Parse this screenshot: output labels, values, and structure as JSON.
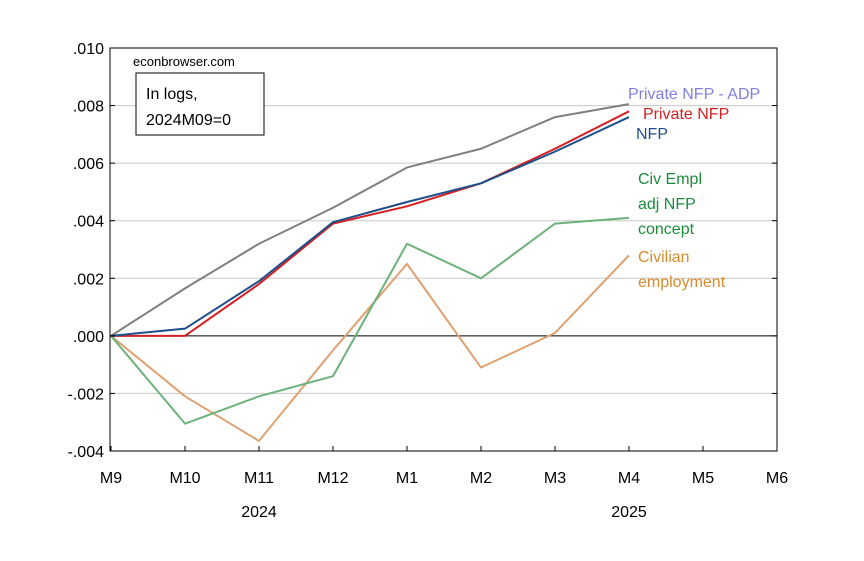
{
  "chart_data": {
    "type": "line",
    "source_note": "econbrowser.com",
    "annotation_lines": [
      "In logs,",
      "2024M09=0"
    ],
    "x": [
      "M9",
      "M10",
      "M11",
      "M12",
      "M1",
      "M2",
      "M3",
      "M4",
      "M5",
      "M6"
    ],
    "year_labels": [
      {
        "text": "2024",
        "at": "M11"
      },
      {
        "text": "2025",
        "at": "M4"
      }
    ],
    "ylim": [
      -0.004,
      0.01
    ],
    "yticks": [
      0.01,
      0.008,
      0.006,
      0.004,
      0.002,
      0.0,
      -0.002,
      -0.004
    ],
    "ytick_labels": [
      ".010",
      ".008",
      ".006",
      ".004",
      ".002",
      ".000",
      "-.002",
      "-.004"
    ],
    "grid": true,
    "zero_line": true,
    "series": [
      {
        "label_lines": [
          "Private NFP - ADP"
        ],
        "color": "#8080e0",
        "line_color": "#808080",
        "values": [
          0.0,
          0.00165,
          0.0032,
          0.00445,
          0.00585,
          0.0065,
          0.0076,
          0.00805,
          null,
          null
        ]
      },
      {
        "label_lines": [
          "Private NFP"
        ],
        "color": "#d42020",
        "values": [
          0.0,
          0.0,
          0.0018,
          0.0039,
          0.0045,
          0.0053,
          0.0065,
          0.0078,
          null,
          null
        ]
      },
      {
        "label_lines": [
          "NFP"
        ],
        "color": "#1f4e8c",
        "values": [
          0.0,
          0.00025,
          0.0019,
          0.00395,
          0.00465,
          0.0053,
          0.0064,
          0.0076,
          null,
          null
        ]
      },
      {
        "label_lines": [
          "Civ Empl",
          "adj NFP",
          "concept"
        ],
        "color": "#1e8a3c",
        "line_color": "#6db27a",
        "values": [
          0.0,
          -0.00305,
          -0.0021,
          -0.0014,
          0.0032,
          0.002,
          0.0039,
          0.0041,
          null,
          null
        ]
      },
      {
        "label_lines": [
          "Civilian",
          "employment"
        ],
        "color": "#d98a2b",
        "line_color": "#e0a070",
        "values": [
          0.0,
          -0.0021,
          -0.00365,
          -0.0005,
          0.0025,
          -0.0011,
          0.0001,
          0.0028,
          null,
          null
        ]
      }
    ]
  }
}
